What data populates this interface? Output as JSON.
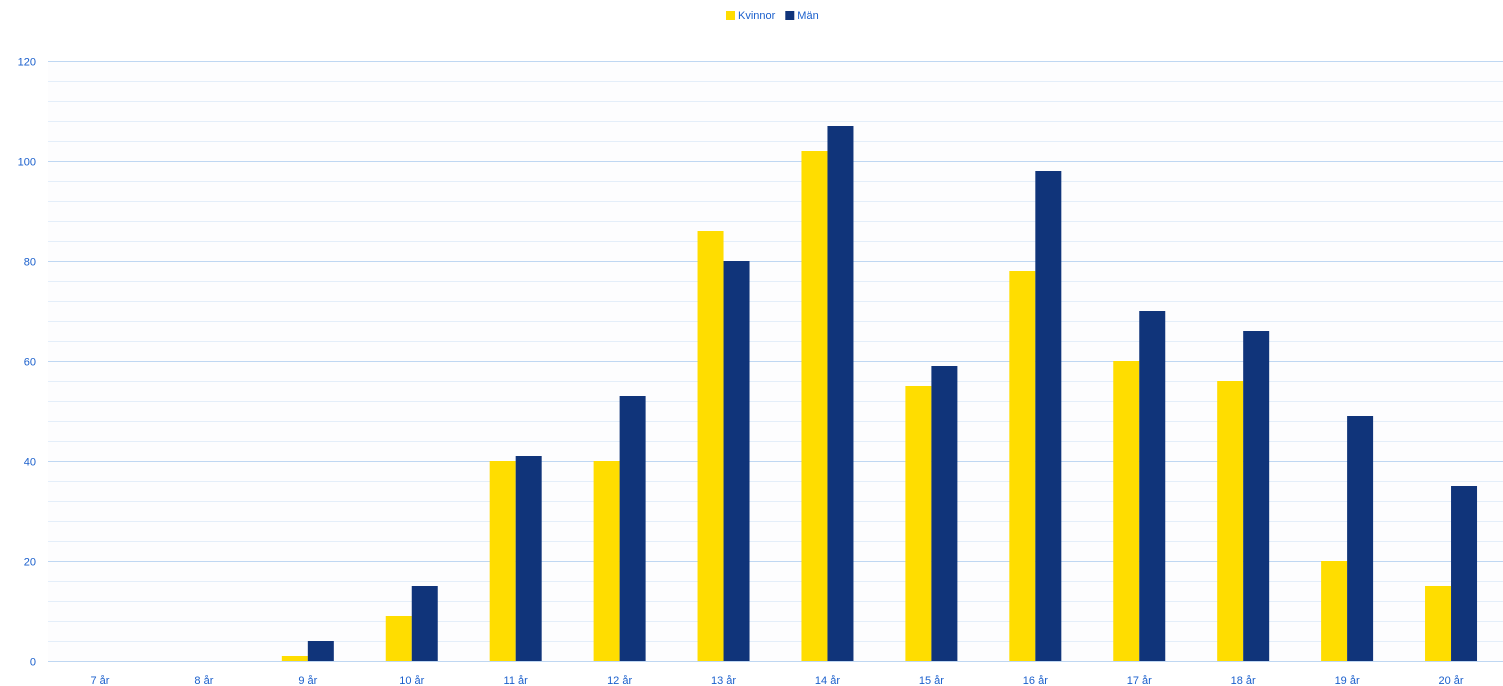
{
  "colors": {
    "women": "#FFDD00",
    "men": "#10347A",
    "grid_major": "#BFD7F2",
    "grid_minor": "#E4EEF9",
    "text": "#1A5FCC"
  },
  "chart_data": {
    "type": "bar",
    "categories": [
      "7 år",
      "8 år",
      "9 år",
      "10 år",
      "11 år",
      "12 år",
      "13 år",
      "14 år",
      "15 år",
      "16 år",
      "17 år",
      "18 år",
      "19 år",
      "20 år"
    ],
    "series": [
      {
        "name": "Kvinnor",
        "color": "#FFDD00",
        "values": [
          0,
          0,
          1,
          9,
          40,
          40,
          86,
          102,
          55,
          78,
          60,
          56,
          20,
          15
        ]
      },
      {
        "name": "Män",
        "color": "#10347A",
        "values": [
          0,
          0,
          4,
          15,
          41,
          53,
          80,
          107,
          59,
          98,
          70,
          66,
          49,
          35
        ]
      }
    ],
    "ylim": [
      0,
      120
    ],
    "yticks": [
      0,
      20,
      40,
      60,
      80,
      100,
      120
    ],
    "legend_position": "top-center",
    "grid": true
  }
}
